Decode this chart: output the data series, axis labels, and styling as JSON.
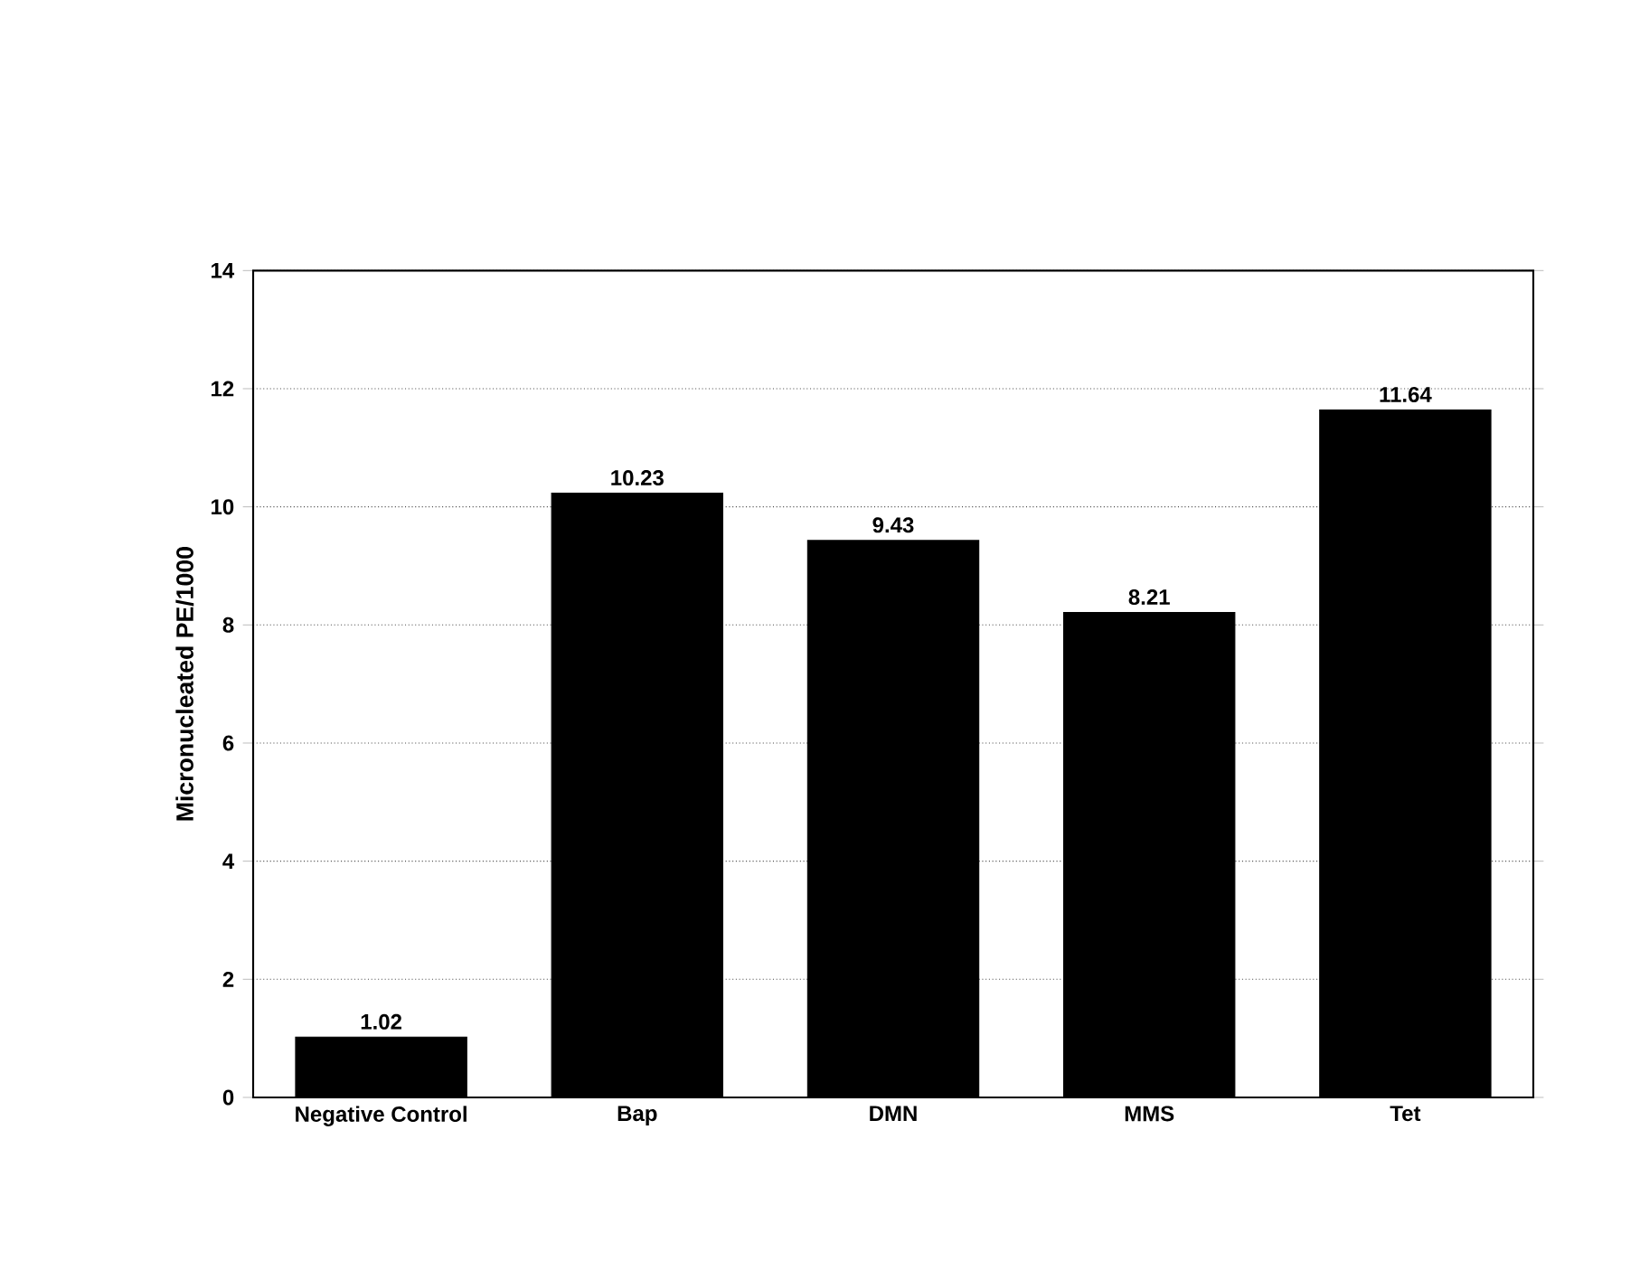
{
  "chart_data": {
    "type": "bar",
    "ylabel": "Micronucleated PE/1000",
    "categories": [
      "Negative Control",
      "Bap",
      "DMN",
      "MMS",
      "Tet"
    ],
    "values": [
      1.02,
      10.23,
      9.43,
      8.21,
      11.64
    ],
    "color": "#000000",
    "ylim": [
      0,
      14
    ],
    "yticks": [
      0,
      2,
      4,
      6,
      8,
      10,
      12,
      14
    ],
    "grid": "y",
    "data_labels": true
  }
}
